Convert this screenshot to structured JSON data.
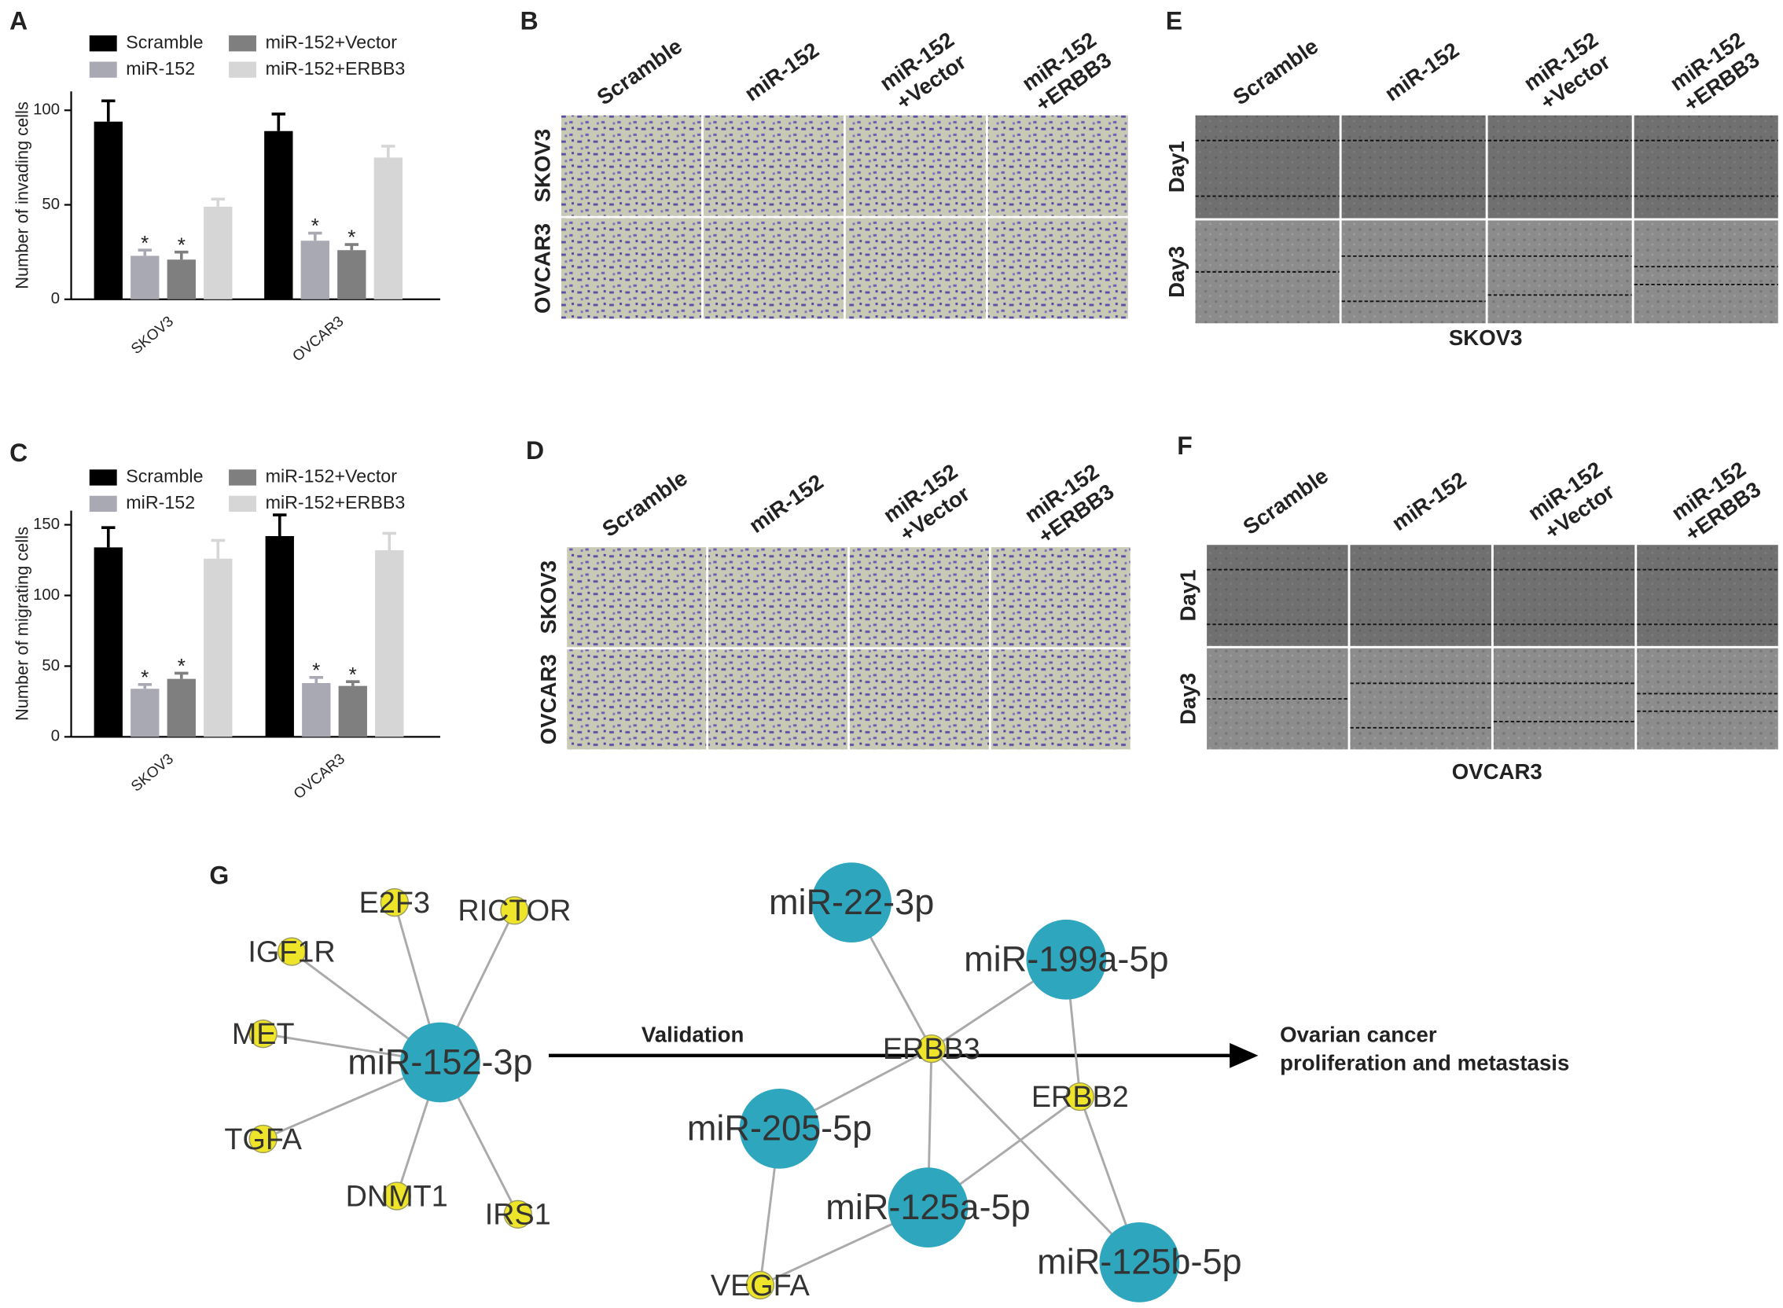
{
  "chart_data": [
    {
      "type": "bar",
      "letter": "A",
      "ylabel": "Number of invading cells",
      "categories": [
        "SKOV3",
        "OVCAR3"
      ],
      "series": [
        {
          "name": "Scramble",
          "color": "#000000",
          "values": [
            94,
            89
          ],
          "errors": [
            11,
            9
          ]
        },
        {
          "name": "miR-152",
          "color": "#a9a9b3",
          "values": [
            23,
            31
          ],
          "errors": [
            3,
            4
          ],
          "markers": [
            "*",
            "*"
          ]
        },
        {
          "name": "miR-152+Vector",
          "color": "#7f7f7f",
          "values": [
            21,
            26
          ],
          "errors": [
            4,
            3
          ],
          "markers": [
            "*",
            "*"
          ]
        },
        {
          "name": "miR-152+ERBB3",
          "color": "#d6d6d6",
          "values": [
            49,
            75
          ],
          "errors": [
            4,
            6
          ]
        }
      ],
      "ylim": [
        0,
        110
      ],
      "yticks": [
        0,
        50,
        100
      ]
    },
    {
      "type": "bar",
      "letter": "C",
      "ylabel": "Number of migrating cells",
      "categories": [
        "SKOV3",
        "OVCAR3"
      ],
      "series": [
        {
          "name": "Scramble",
          "color": "#000000",
          "values": [
            134,
            142
          ],
          "errors": [
            14,
            15
          ]
        },
        {
          "name": "miR-152",
          "color": "#a9a9b3",
          "values": [
            34,
            38
          ],
          "errors": [
            3,
            4
          ],
          "markers": [
            "*",
            "*"
          ]
        },
        {
          "name": "miR-152+Vector",
          "color": "#7f7f7f",
          "values": [
            41,
            36
          ],
          "errors": [
            4,
            3
          ],
          "markers": [
            "*",
            "*"
          ]
        },
        {
          "name": "miR-152+ERBB3",
          "color": "#d6d6d6",
          "values": [
            126,
            132
          ],
          "errors": [
            13,
            12
          ]
        }
      ],
      "ylim": [
        0,
        160
      ],
      "yticks": [
        0,
        50,
        100,
        150
      ]
    }
  ],
  "image_panels": [
    {
      "letter": "B",
      "columns": [
        [
          "Scramble"
        ],
        [
          "miR-152"
        ],
        [
          "miR-152",
          "+Vector"
        ],
        [
          "miR-152",
          "+ERBB3"
        ]
      ],
      "rows": [
        "SKOV3",
        "OVCAR3"
      ]
    },
    {
      "letter": "D",
      "columns": [
        [
          "Scramble"
        ],
        [
          "miR-152"
        ],
        [
          "miR-152",
          "+Vector"
        ],
        [
          "miR-152",
          "+ERBB3"
        ]
      ],
      "rows": [
        "SKOV3",
        "OVCAR3"
      ]
    },
    {
      "letter": "E",
      "columns": [
        [
          "Scramble"
        ],
        [
          "miR-152"
        ],
        [
          "miR-152",
          "+Vector"
        ],
        [
          "miR-152",
          "+ERBB3"
        ]
      ],
      "rows": [
        "Day1",
        "Day3"
      ],
      "caption": "SKOV3"
    },
    {
      "letter": "F",
      "columns": [
        [
          "Scramble"
        ],
        [
          "miR-152"
        ],
        [
          "miR-152",
          "+Vector"
        ],
        [
          "miR-152",
          "+ERBB3"
        ]
      ],
      "rows": [
        "Day1",
        "Day3"
      ],
      "caption": "OVCAR3"
    }
  ],
  "network": {
    "letter": "G",
    "nodes": [
      {
        "label": "miR-152-3p",
        "color": "#2ea6be"
      },
      {
        "label": "E2F3",
        "color": "#eee52a"
      },
      {
        "label": "RICTOR",
        "color": "#eee52a"
      },
      {
        "label": "IGF1R",
        "color": "#eee52a"
      },
      {
        "label": "MET",
        "color": "#eee52a"
      },
      {
        "label": "TGFA",
        "color": "#eee52a"
      },
      {
        "label": "DNMT1",
        "color": "#eee52a"
      },
      {
        "label": "IRS1",
        "color": "#eee52a"
      },
      {
        "label": "miR-22-3p",
        "color": "#2ea6be"
      },
      {
        "label": "miR-199a-5p",
        "color": "#2ea6be"
      },
      {
        "label": "ERBB3",
        "color": "#eee52a"
      },
      {
        "label": "ERBB2",
        "color": "#eee52a"
      },
      {
        "label": "miR-205-5p",
        "color": "#2ea6be"
      },
      {
        "label": "miR-125a-5p",
        "color": "#2ea6be"
      },
      {
        "label": "miR-125b-5p",
        "color": "#2ea6be"
      },
      {
        "label": "VEGFA",
        "color": "#eee52a"
      }
    ],
    "edges": [
      [
        0,
        1
      ],
      [
        0,
        2
      ],
      [
        0,
        3
      ],
      [
        0,
        4
      ],
      [
        0,
        5
      ],
      [
        0,
        6
      ],
      [
        0,
        7
      ],
      [
        8,
        10
      ],
      [
        9,
        10
      ],
      [
        9,
        11
      ],
      [
        10,
        12
      ],
      [
        10,
        13
      ],
      [
        10,
        14
      ],
      [
        11,
        13
      ],
      [
        11,
        14
      ],
      [
        12,
        15
      ],
      [
        13,
        15
      ]
    ],
    "edge_label": "Validation",
    "target": [
      "Ovarian cancer",
      "proliferation and metastasis"
    ]
  }
}
